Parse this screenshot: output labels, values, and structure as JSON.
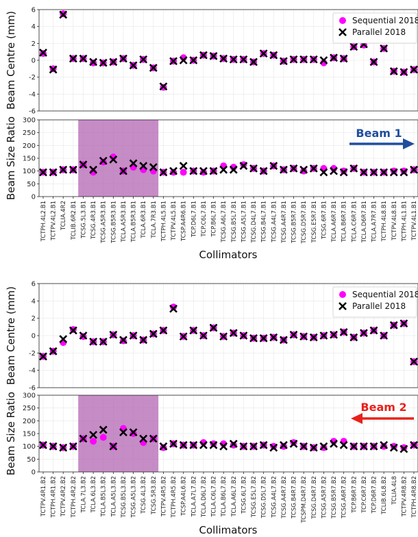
{
  "figure": {
    "legend": {
      "sequential_label": "Sequential 2018",
      "parallel_label": "Parallel 2018"
    },
    "colors": {
      "sequential": "#ff00ff",
      "parallel": "#000000",
      "band": "#b366b3",
      "beam1_arrow": "#1f4e9e",
      "beam2_arrow": "#e8211b",
      "grid": "#e6e6e6"
    }
  },
  "chart_data": [
    {
      "type": "scatter",
      "panel": "beam1-centre",
      "ylabel": "Beam Centre (mm)",
      "ylim": [
        -6,
        6
      ],
      "yticks": [
        -6,
        -4,
        -2,
        0,
        2,
        4,
        6
      ],
      "grid": true,
      "legend_position": "top-right",
      "categories": [
        "TCTPH.4L2.B1",
        "TCTPV.4L2.B1",
        "TCLIA.4R2",
        "TCLIB.6R2.B1",
        "TCSG.5L3.B1",
        "TCSG.4R3.B1",
        "TCSG.A5R3.B1",
        "TCSG.B5R3.B1",
        "TCLA.A5R3.B1",
        "TCLA.B5R3.B1",
        "TCLA.6R3.B1",
        "TCLA.7R3.B1",
        "TCTPH.4L5.B1",
        "TCTPV.4L5.B1",
        "TCSP.A4R6.B1",
        "TCP.D6L7.B1",
        "TCP.C6L7.B1",
        "TCP.B6L7.B1",
        "TCSG.A6L7.B1",
        "TCSG.B5L7.B1",
        "TCSG.A5L7.B1",
        "TCSG.D4L7.B1",
        "TCSG.B4L7.B1",
        "TCSG.A4L7.B1",
        "TCSG.A4R7.B1",
        "TCSG.B5R7.B1",
        "TCSG.D5R7.B1",
        "TCSG.E5R7.B1",
        "TCSG.6R7.B1",
        "TCLA.A6R7.B1",
        "TCLA.B6R7.B1",
        "TCLA.C6R7.B1",
        "TCLA.D6R7.B1",
        "TCLA.A7R7.B1",
        "TCTPH.4L8.B1",
        "TCTPV.4L8.B1",
        "TCTPH.4L1.B1",
        "TCTPV.4L1.B1"
      ],
      "series": [
        {
          "name": "Sequential 2018",
          "values": [
            0.8,
            -1.0,
            5.5,
            0.2,
            0.2,
            -0.3,
            -0.3,
            -0.2,
            0.2,
            -0.6,
            0.1,
            -0.9,
            -3.2,
            -0.1,
            0.3,
            0.0,
            0.6,
            0.5,
            0.2,
            0.1,
            0.1,
            -0.2,
            0.8,
            0.6,
            -0.1,
            0.1,
            0.1,
            0.1,
            -0.3,
            0.3,
            0.2,
            1.6,
            1.8,
            -0.2,
            1.4,
            -1.3,
            -1.4,
            -1.1
          ]
        },
        {
          "name": "Parallel 2018",
          "values": [
            0.9,
            -1.1,
            5.4,
            0.2,
            0.2,
            -0.2,
            -0.3,
            -0.2,
            0.2,
            -0.6,
            0.1,
            -0.9,
            -3.1,
            -0.1,
            0.0,
            0.0,
            0.6,
            0.5,
            0.2,
            0.1,
            0.1,
            -0.2,
            0.8,
            0.6,
            -0.1,
            0.1,
            0.1,
            0.1,
            0.0,
            0.3,
            0.2,
            1.6,
            1.9,
            -0.2,
            1.4,
            -1.3,
            -1.4,
            -1.1
          ]
        }
      ]
    },
    {
      "type": "scatter",
      "panel": "beam1-size",
      "ylabel": "Beam Size Ratio",
      "xlabel": "Collimators",
      "ylim": [
        0,
        300
      ],
      "yticks": [
        0,
        50,
        100,
        150,
        200,
        250,
        300
      ],
      "grid": true,
      "annotation": "Beam 1",
      "arrow_direction": "right",
      "highlight_range": [
        "TCSG.5L3.B1",
        "TCLA.7R3.B1"
      ],
      "categories": [
        "TCTPH.4L2.B1",
        "TCTPV.4L2.B1",
        "TCLIA.4R2",
        "TCLIB.6R2.B1",
        "TCSG.5L3.B1",
        "TCSG.4R3.B1",
        "TCSG.A5R3.B1",
        "TCSG.B5R3.B1",
        "TCLA.A5R3.B1",
        "TCLA.B5R3.B1",
        "TCLA.6R3.B1",
        "TCLA.7R3.B1",
        "TCTPH.4L5.B1",
        "TCTPV.4L5.B1",
        "TCSP.A4R6.B1",
        "TCP.D6L7.B1",
        "TCP.C6L7.B1",
        "TCP.B6L7.B1",
        "TCSG.A6L7.B1",
        "TCSG.B5L7.B1",
        "TCSG.A5L7.B1",
        "TCSG.D4L7.B1",
        "TCSG.B4L7.B1",
        "TCSG.A4L7.B1",
        "TCSG.A4R7.B1",
        "TCSG.B5R7.B1",
        "TCSG.D5R7.B1",
        "TCSG.E5R7.B1",
        "TCSG.6R7.B1",
        "TCLA.A6R7.B1",
        "TCLA.B6R7.B1",
        "TCLA.C6R7.B1",
        "TCLA.D6R7.B1",
        "TCLA.A7R7.B1",
        "TCTPH.4L8.B1",
        "TCTPV.4L8.B1",
        "TCTPH.4L1.B1",
        "TCTPV.4L1.B1"
      ],
      "series": [
        {
          "name": "Sequential 2018",
          "values": [
            95,
            95,
            105,
            105,
            125,
            95,
            135,
            155,
            100,
            115,
            105,
            100,
            95,
            95,
            95,
            100,
            95,
            100,
            120,
            115,
            125,
            110,
            100,
            120,
            105,
            110,
            100,
            110,
            110,
            110,
            100,
            110,
            95,
            95,
            95,
            100,
            100,
            105
          ]
        },
        {
          "name": "Parallel 2018",
          "values": [
            95,
            95,
            105,
            105,
            125,
            105,
            140,
            145,
            100,
            130,
            120,
            115,
            95,
            100,
            120,
            100,
            100,
            100,
            105,
            105,
            120,
            110,
            100,
            120,
            105,
            110,
            105,
            110,
            95,
            100,
            95,
            110,
            95,
            95,
            95,
            95,
            95,
            105
          ]
        }
      ]
    },
    {
      "type": "scatter",
      "panel": "beam2-centre",
      "ylabel": "Beam Centre (mm)",
      "ylim": [
        -6,
        6
      ],
      "yticks": [
        -6,
        -4,
        -2,
        0,
        2,
        4,
        6
      ],
      "grid": true,
      "legend_position": "top-right",
      "categories": [
        "TCTPV.4R1.B2",
        "TCTPH.4R1.B2",
        "TCTPV.4R2.B2",
        "TCTPH.4R2.B2",
        "TCLA.7L3.B2",
        "TCLA.6L3.B2",
        "TCLA.B5L3.B2",
        "TCLA.A5L3.B2",
        "TCSG.B5L3.B2",
        "TCSG.A5L3.B2",
        "TCSG.4L3.B2",
        "TCSG.5R3.B2",
        "TCTPV.4R5.B2",
        "TCTPH.4R5.B2",
        "TCSP.A4L6.B2",
        "TCLA.A7L7.B2",
        "TCLA.D6L7.B2",
        "TCLA.C6L7.B2",
        "TCLA.B6L7.B2",
        "TCLA.A6L7.B2",
        "TCSG.6L7.B2",
        "TCSG.E5L7.B2",
        "TCSG.D5L7.B2",
        "TCSG.A4L7.B2",
        "TCSG.A4R7.B2",
        "TCSG.B4R7.B2",
        "TCSPM.D4R7.B2",
        "TCSG.D4R7.B2",
        "TCSG.A5R7.B2",
        "TCSG.B5R7.B2",
        "TCSG.A6R7.B2",
        "TCP.B6R7.B2",
        "TCP.C6R7.B2",
        "TCP.D6R7.B2",
        "TCLIB.6L8.B2",
        "TCLIA.4L8",
        "TCTPV.4R8.B2",
        "TCTPH.4R8.B2"
      ],
      "series": [
        {
          "name": "Sequential 2018",
          "values": [
            -2.4,
            -1.8,
            -0.8,
            0.7,
            -0.1,
            -0.7,
            -0.7,
            0.1,
            -0.6,
            0.0,
            -0.5,
            0.2,
            0.6,
            3.3,
            -0.1,
            0.6,
            0.0,
            0.9,
            -0.1,
            0.3,
            0.0,
            -0.3,
            -0.3,
            -0.2,
            -0.5,
            0.1,
            -0.1,
            -0.2,
            0.0,
            0.1,
            0.4,
            -0.2,
            0.3,
            0.6,
            0.0,
            1.2,
            1.4,
            -3.0
          ]
        },
        {
          "name": "Parallel 2018",
          "values": [
            -2.4,
            -1.8,
            -0.4,
            0.6,
            0.0,
            -0.7,
            -0.7,
            0.1,
            -0.5,
            0.0,
            -0.5,
            0.2,
            0.6,
            3.1,
            -0.1,
            0.6,
            0.0,
            0.9,
            -0.1,
            0.3,
            0.0,
            -0.3,
            -0.3,
            -0.2,
            -0.5,
            0.1,
            -0.1,
            -0.2,
            0.0,
            0.1,
            0.4,
            -0.2,
            0.3,
            0.6,
            0.0,
            1.2,
            1.4,
            -3.0
          ]
        }
      ]
    },
    {
      "type": "scatter",
      "panel": "beam2-size",
      "ylabel": "Beam Size Ratio",
      "xlabel": "Collimators",
      "ylim": [
        0,
        300
      ],
      "yticks": [
        0,
        50,
        100,
        150,
        200,
        250,
        300
      ],
      "grid": true,
      "annotation": "Beam 2",
      "arrow_direction": "left",
      "highlight_range": [
        "TCLA.7L3.B2",
        "TCSG.5R3.B2"
      ],
      "categories": [
        "TCTPV.4R1.B2",
        "TCTPH.4R1.B2",
        "TCTPV.4R2.B2",
        "TCTPH.4R2.B2",
        "TCLA.7L3.B2",
        "TCLA.6L3.B2",
        "TCLA.B5L3.B2",
        "TCLA.A5L3.B2",
        "TCSG.B5L3.B2",
        "TCSG.A5L3.B2",
        "TCSG.4L3.B2",
        "TCSG.5R3.B2",
        "TCTPV.4R5.B2",
        "TCTPH.4R5.B2",
        "TCSP.A4L6.B2",
        "TCLA.A7L7.B2",
        "TCLA.D6L7.B2",
        "TCLA.C6L7.B2",
        "TCLA.B6L7.B2",
        "TCLA.A6L7.B2",
        "TCSG.6L7.B2",
        "TCSG.E5L7.B2",
        "TCSG.D5L7.B2",
        "TCSG.A4L7.B2",
        "TCSG.A4R7.B2",
        "TCSG.B4R7.B2",
        "TCSPM.D4R7.B2",
        "TCSG.D4R7.B2",
        "TCSG.A5R7.B2",
        "TCSG.B5R7.B2",
        "TCSG.A6R7.B2",
        "TCP.B6R7.B2",
        "TCP.C6R7.B2",
        "TCP.D6R7.B2",
        "TCLIB.6L8.B2",
        "TCLIA.4L8",
        "TCTPV.4R8.B2",
        "TCTPH.4R8.B2"
      ],
      "series": [
        {
          "name": "Sequential 2018",
          "values": [
            105,
            100,
            95,
            100,
            130,
            120,
            135,
            100,
            170,
            150,
            115,
            130,
            95,
            110,
            105,
            105,
            115,
            110,
            110,
            105,
            100,
            100,
            105,
            100,
            100,
            115,
            100,
            95,
            95,
            120,
            120,
            100,
            100,
            100,
            100,
            100,
            95,
            105
          ]
        },
        {
          "name": "Parallel 2018",
          "values": [
            105,
            100,
            95,
            100,
            130,
            145,
            165,
            100,
            155,
            155,
            130,
            130,
            100,
            110,
            105,
            105,
            105,
            105,
            100,
            110,
            100,
            100,
            105,
            95,
            105,
            110,
            100,
            95,
            100,
            110,
            105,
            100,
            100,
            100,
            105,
            95,
            90,
            105
          ]
        }
      ]
    }
  ]
}
